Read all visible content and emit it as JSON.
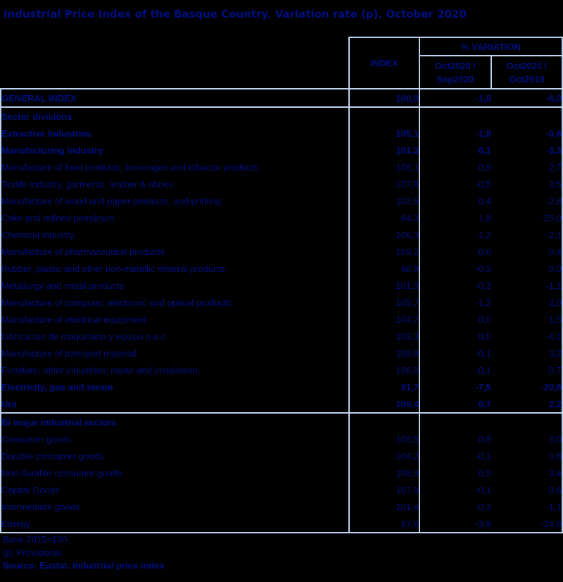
{
  "title": "Industrial Price Index of the Basque Country. Variation rate (p). October 2020",
  "header": {
    "index_label": "INDEX",
    "variation_label": "% VARIATION",
    "mom_label": "Oct2020 / Sep2020",
    "yoy_label": "Oct2020 / Oct2019"
  },
  "table": {
    "sections": [
      {
        "rows": [
          {
            "label": "GENERAL INDEX",
            "index": "100,0",
            "mom": "-1,0",
            "yoy": "-6,0",
            "b": 1,
            "ind": 0
          }
        ]
      },
      {
        "rows": [
          {
            "label": "Sector divisions",
            "index": "",
            "mom": "",
            "yoy": "",
            "b": 1,
            "ind": 0
          },
          {
            "label": "Extractive Industries",
            "index": "105,1",
            "mom": "-1,9",
            "yoy": "-0,6",
            "b": 1,
            "ind": 1
          },
          {
            "label": "Manufacturing industry",
            "index": "101,3",
            "mom": "0,1",
            "yoy": "-3,3",
            "b": 1,
            "ind": 1
          },
          {
            "label": "Manufacture of food products, beverages and tobacco products",
            "index": "106,1",
            "mom": "0,9",
            "yoy": "2,7",
            "b": 0,
            "ind": 2
          },
          {
            "label": "Textile industry, garments, leather & shoes",
            "index": "107,8",
            "mom": "-0,5",
            "yoy": "3,5",
            "b": 0,
            "ind": 2
          },
          {
            "label": "Manufacture of wood and paper products, and printing",
            "index": "103,5",
            "mom": "0,4",
            "yoy": "-2,8",
            "b": 0,
            "ind": 2
          },
          {
            "label": "Coke and refined petroleum",
            "index": "84,3",
            "mom": "1,8",
            "yoy": "-25,0",
            "b": 0,
            "ind": 2
          },
          {
            "label": "Chemical industry",
            "index": "106,3",
            "mom": "-1,2",
            "yoy": "-2,1",
            "b": 0,
            "ind": 2
          },
          {
            "label": "Manufacture of pharmaceutical products",
            "index": "109,2",
            "mom": "0,8",
            "yoy": "0,4",
            "b": 0,
            "ind": 2
          },
          {
            "label": "Rubber, plastic and other non-metallic mineral products",
            "index": "98,9",
            "mom": "-0,3",
            "yoy": "0,0",
            "b": 0,
            "ind": 2
          },
          {
            "label": "Metallurgy and metal products",
            "index": "101,3",
            "mom": "-0,3",
            "yoy": "-1,1",
            "b": 0,
            "ind": 2
          },
          {
            "label": "Manufacture of computer, electronic and optical products",
            "index": "103,7",
            "mom": "-1,2",
            "yoy": "2,0",
            "b": 0,
            "ind": 2
          },
          {
            "label": "Manufacture of electrical equipment",
            "index": "104,7",
            "mom": "0,0",
            "yoy": "1,5",
            "b": 0,
            "ind": 2
          },
          {
            "label": "fabricacion de maquinaria y equipo n.e.c",
            "index": "103,3",
            "mom": "0,0",
            "yoy": "-4,1",
            "b": 0,
            "ind": 2
          },
          {
            "label": "Manufacture of transport material",
            "index": "108,8",
            "mom": "-0,1",
            "yoy": "3,2",
            "b": 0,
            "ind": 2
          },
          {
            "label": "Furniture; other industries; repair and installation",
            "index": "106,0",
            "mom": "-0,1",
            "yoy": "0,7",
            "b": 0,
            "ind": 2
          },
          {
            "label": "Electricity, gas and steam",
            "index": "91,7",
            "mom": "-7,5",
            "yoy": "-20,8",
            "b": 1,
            "ind": 1
          },
          {
            "label": "Ura",
            "index": "109,4",
            "mom": "0,7",
            "yoy": "2,2",
            "b": 1,
            "ind": 1
          }
        ]
      },
      {
        "rows": [
          {
            "label": "Bi major industrial sectors",
            "index": "",
            "mom": "",
            "yoy": "",
            "b": 1,
            "ind": 0
          },
          {
            "label": "Consumer goods",
            "index": "106,5",
            "mom": "0,8",
            "yoy": "3,0",
            "b": 0,
            "ind": 1
          },
          {
            "label": "Durable consumer goods",
            "index": "104,2",
            "mom": "-0,1",
            "yoy": "0,8",
            "b": 0,
            "ind": 2
          },
          {
            "label": "Non-durable consumer goods",
            "index": "106,9",
            "mom": "0,9",
            "yoy": "3,4",
            "b": 0,
            "ind": 2
          },
          {
            "label": "Capital Goods",
            "index": "107,9",
            "mom": "-0,1",
            "yoy": "0,6",
            "b": 0,
            "ind": 1
          },
          {
            "label": "Intermediate goods",
            "index": "101,4",
            "mom": "-0,3",
            "yoy": "-1,1",
            "b": 0,
            "ind": 1
          },
          {
            "label": "Energy",
            "index": "87,6",
            "mom": "-3,9",
            "yoy": "-24,6",
            "b": 0,
            "ind": 1
          }
        ]
      }
    ]
  },
  "footnotes": {
    "base": "Base 2015=100",
    "provisional": "(p) Provisional",
    "source": "Source: Eustat. Industrial price index"
  },
  "colors": {
    "background": "#000000",
    "text_navy": "#000f80",
    "number_navy": "#06129a",
    "border_blue": "#bdd2ee"
  }
}
